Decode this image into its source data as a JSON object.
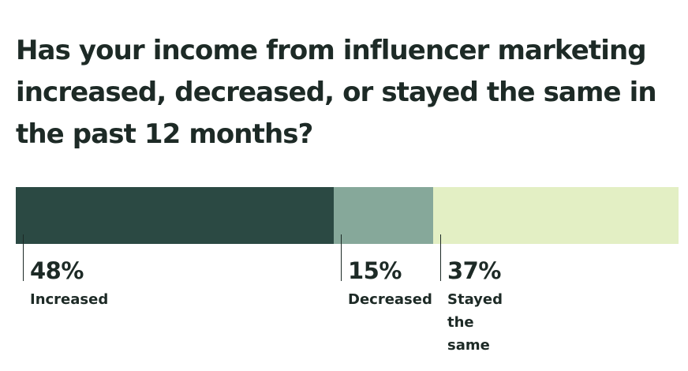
{
  "chart_data": {
    "type": "bar",
    "stacked": true,
    "orientation": "horizontal",
    "title": "Has your income from influencer marketing increased, decreased, or stayed the same in the past 12 months?",
    "unit": "%",
    "categories": [
      "Increased",
      "Decreased",
      "Stayed\nthe\nsame"
    ],
    "values": [
      48,
      15,
      37
    ],
    "value_labels": [
      "48%",
      "15%",
      "37%"
    ],
    "colors": [
      "#2b4943",
      "#86a89a",
      "#e3efc4"
    ],
    "xlim": [
      0,
      100
    ],
    "grid": false,
    "legend": "none"
  }
}
